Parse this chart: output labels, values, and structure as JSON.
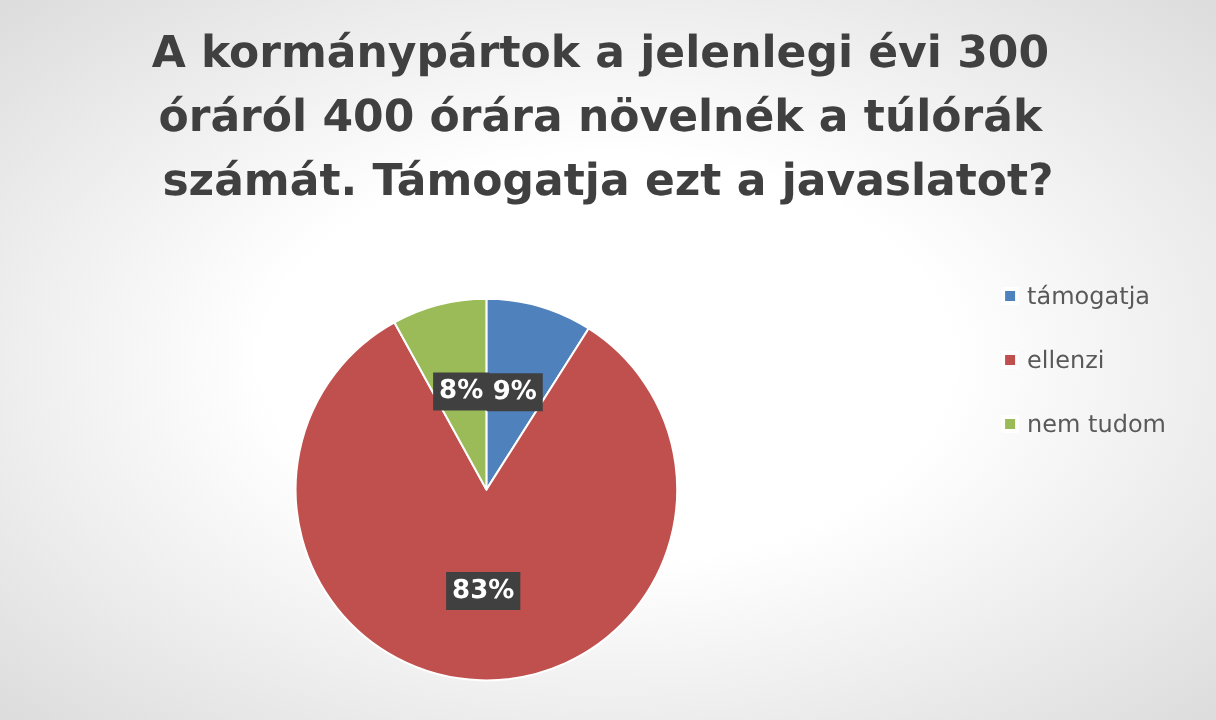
{
  "chart_data": {
    "type": "pie",
    "title": "A kormánypártok a jelenlegi évi 300 óráról 400 órára növelnék a túlórák számát. Támogatja ezt a javaslatot?",
    "categories": [
      "támogatja",
      "ellenzi",
      "nem tudom"
    ],
    "values": [
      9,
      83,
      8
    ],
    "colors": [
      "#4f81bd",
      "#c0504d",
      "#9bbb59"
    ],
    "value_labels": [
      "9%",
      "83%",
      "8%"
    ],
    "legend": "right"
  }
}
